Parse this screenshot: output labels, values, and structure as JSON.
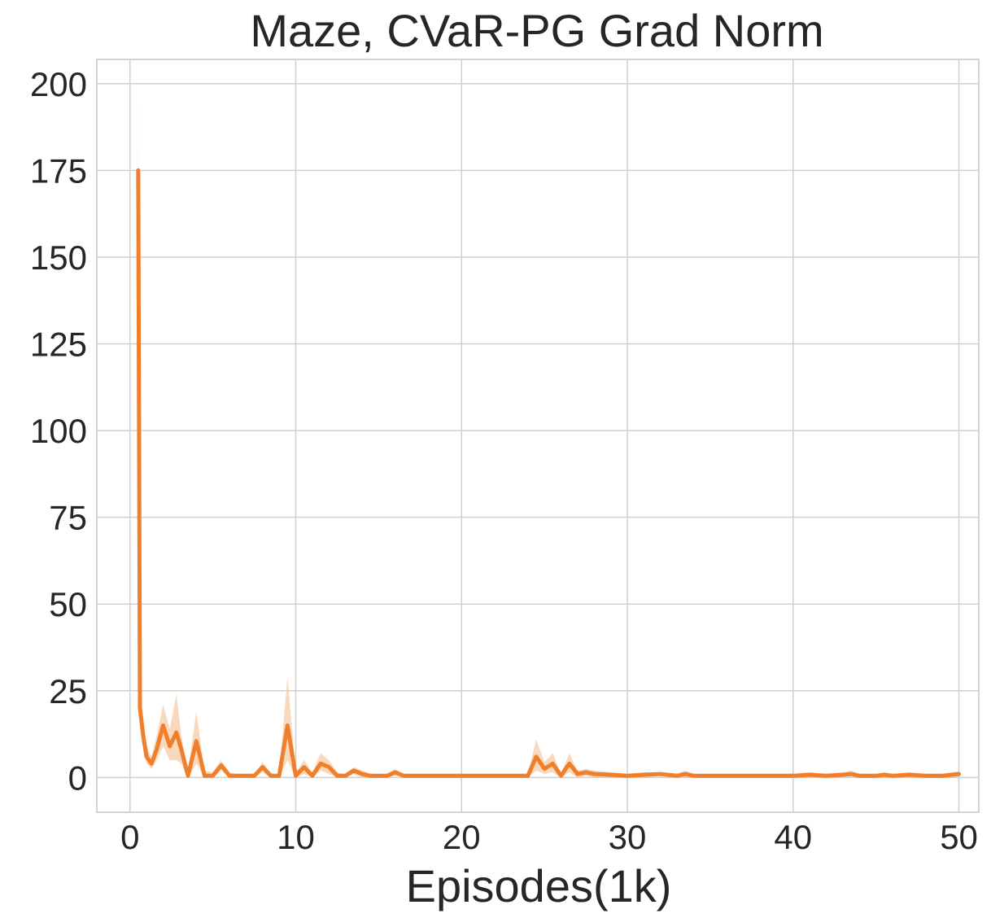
{
  "chart_data": {
    "type": "line",
    "title": "Maze, CVaR-PG Grad Norm",
    "xlabel": "Episodes(1k)",
    "ylabel": "",
    "xlim": [
      -2,
      51.2
    ],
    "ylim": [
      -10,
      207
    ],
    "xticks": [
      0,
      10,
      20,
      30,
      40,
      50
    ],
    "yticks": [
      0,
      25,
      50,
      75,
      100,
      125,
      150,
      175,
      200
    ],
    "grid": true,
    "legend": "none",
    "colors": {
      "line": "#ef7f2a",
      "band": "#f6c9a1",
      "grid": "#cfcfcf",
      "frame": "#d3d3d3"
    },
    "series": [
      {
        "x": [
          0.5,
          0.6,
          0.8,
          1.0,
          1.3,
          1.6,
          2.0,
          2.4,
          2.8,
          3.1,
          3.5,
          4.0,
          4.5,
          5.0,
          5.5,
          6.0,
          6.5,
          7.0,
          7.5,
          8.0,
          8.5,
          9.0,
          9.5,
          10.0,
          10.5,
          11.0,
          11.5,
          12.0,
          12.5,
          13.0,
          13.5,
          14.0,
          14.5,
          15.0,
          15.5,
          16.0,
          16.5,
          17.0,
          18.0,
          19.0,
          20.0,
          21.0,
          22.0,
          23.0,
          24.0,
          24.5,
          25.0,
          25.5,
          26.0,
          26.5,
          27.0,
          27.5,
          28.0,
          29.0,
          30.0,
          31.0,
          32.0,
          33.0,
          33.5,
          34.0,
          35.0,
          36.0,
          37.0,
          38.0,
          39.0,
          40.0,
          41.0,
          42.0,
          43.0,
          43.5,
          44.0,
          45.0,
          45.5,
          46.0,
          47.0,
          48.0,
          49.0,
          50.0
        ],
        "y": [
          175.0,
          20.0,
          12.0,
          6.0,
          4.0,
          8.0,
          15.0,
          9.0,
          13.0,
          8.0,
          0.5,
          10.5,
          0.5,
          0.5,
          3.5,
          0.5,
          0.5,
          0.5,
          0.5,
          3.0,
          0.5,
          0.5,
          15.0,
          0.5,
          3.0,
          0.5,
          4.0,
          3.0,
          0.5,
          0.5,
          2.0,
          1.0,
          0.5,
          0.5,
          0.5,
          1.5,
          0.5,
          0.5,
          0.5,
          0.5,
          0.5,
          0.5,
          0.5,
          0.5,
          0.5,
          6.0,
          2.5,
          4.0,
          0.5,
          4.0,
          1.0,
          1.5,
          1.0,
          0.8,
          0.5,
          0.8,
          1.0,
          0.5,
          1.0,
          0.5,
          0.5,
          0.5,
          0.5,
          0.5,
          0.5,
          0.5,
          0.8,
          0.5,
          0.8,
          1.0,
          0.5,
          0.5,
          0.8,
          0.5,
          0.8,
          0.5,
          0.5,
          1.0
        ],
        "y_upper": [
          198.0,
          26.0,
          16.0,
          9.0,
          6.0,
          12.0,
          21.0,
          14.0,
          24.0,
          12.0,
          2.0,
          19.0,
          2.0,
          1.5,
          5.0,
          1.5,
          1.0,
          1.0,
          1.0,
          4.5,
          1.0,
          1.0,
          29.0,
          1.5,
          5.0,
          1.5,
          7.0,
          5.0,
          1.5,
          1.0,
          3.0,
          2.0,
          1.0,
          1.0,
          1.0,
          2.5,
          1.0,
          1.0,
          1.0,
          1.0,
          1.0,
          1.0,
          1.0,
          1.0,
          1.0,
          11.0,
          4.5,
          7.0,
          1.0,
          7.0,
          2.0,
          2.5,
          2.0,
          1.5,
          1.0,
          1.5,
          1.5,
          1.0,
          2.0,
          1.0,
          1.0,
          1.0,
          1.0,
          1.0,
          1.0,
          1.0,
          1.5,
          1.0,
          1.5,
          2.0,
          1.0,
          1.0,
          1.5,
          1.0,
          1.5,
          1.0,
          1.0,
          1.8
        ],
        "y_lower": [
          150.0,
          14.0,
          8.0,
          4.0,
          2.5,
          5.0,
          9.0,
          5.0,
          5.0,
          4.0,
          0.0,
          4.0,
          0.0,
          0.0,
          2.0,
          0.0,
          0.0,
          0.0,
          0.0,
          1.5,
          0.0,
          0.0,
          5.0,
          0.0,
          1.0,
          0.0,
          2.0,
          1.0,
          0.0,
          0.0,
          1.0,
          0.0,
          0.0,
          0.0,
          0.0,
          0.5,
          0.0,
          0.0,
          0.0,
          0.0,
          0.0,
          0.0,
          0.0,
          0.0,
          0.0,
          2.0,
          1.0,
          1.5,
          0.0,
          1.5,
          0.0,
          0.5,
          0.0,
          0.0,
          0.0,
          0.0,
          0.5,
          0.0,
          0.0,
          0.0,
          0.0,
          0.0,
          0.0,
          0.0,
          0.0,
          0.0,
          0.2,
          0.0,
          0.2,
          0.3,
          0.0,
          0.0,
          0.2,
          0.0,
          0.2,
          0.0,
          0.0,
          0.3
        ]
      }
    ]
  }
}
